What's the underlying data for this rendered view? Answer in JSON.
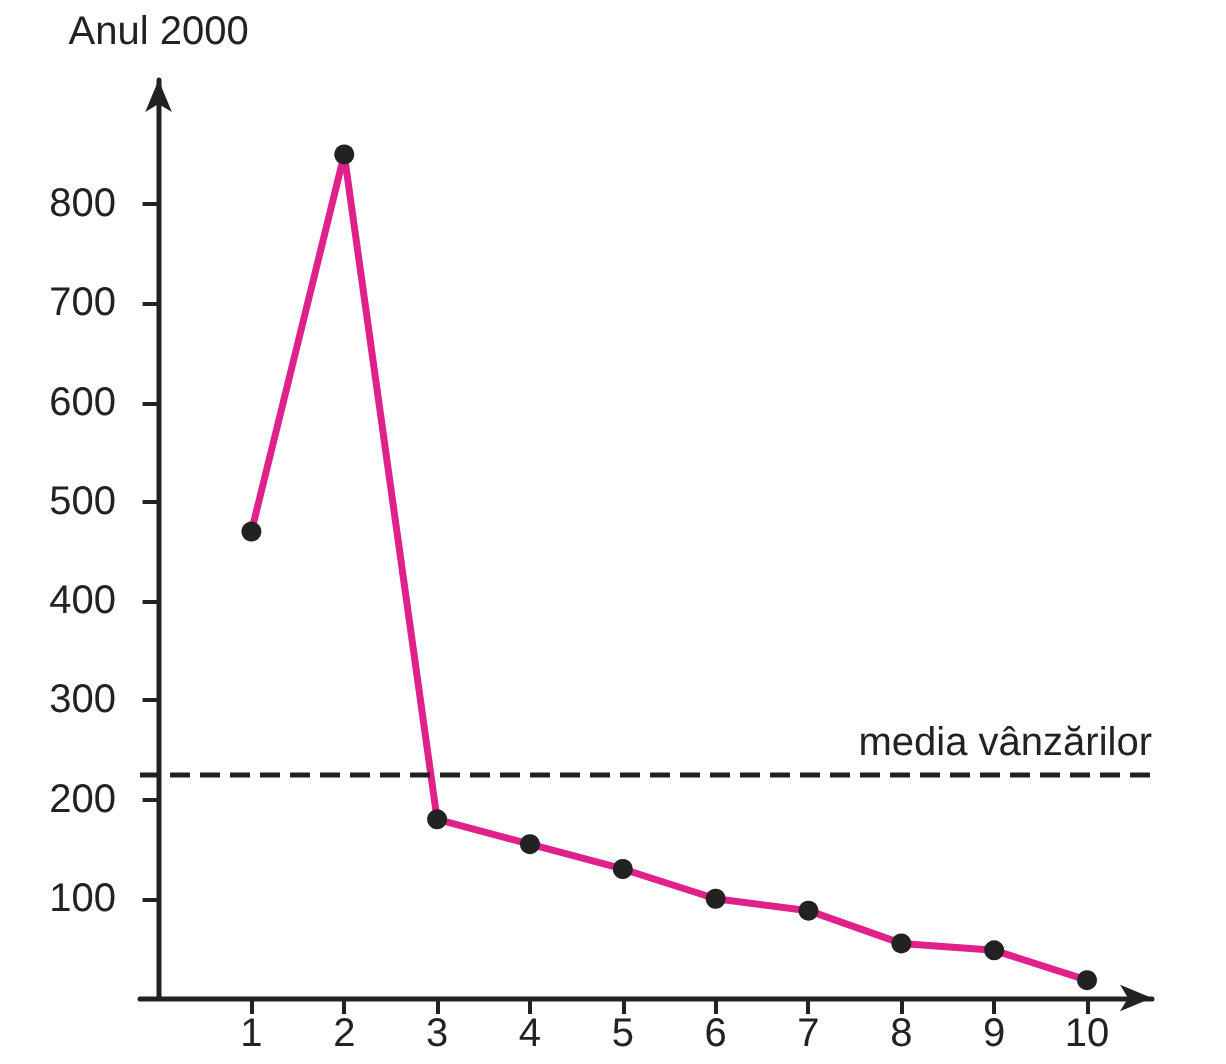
{
  "chart_data": {
    "type": "line",
    "ylabel": "Anul 2000",
    "x": [
      1,
      2,
      3,
      4,
      5,
      6,
      7,
      8,
      9,
      10
    ],
    "series": [
      {
        "color": "#e0218a",
        "values": [
          470,
          850,
          180,
          155,
          130,
          100,
          88,
          55,
          48,
          18
        ]
      }
    ],
    "xlim": [
      -0.2,
      10.7
    ],
    "ylim": [
      0,
      925
    ],
    "xticks": [
      1,
      2,
      3,
      4,
      5,
      6,
      7,
      8,
      9,
      10
    ],
    "yticks": [
      100,
      200,
      300,
      400,
      500,
      600,
      700,
      800
    ],
    "ref_lines": [
      {
        "axis": "y",
        "value": 225,
        "label": "media vânzărilor",
        "color": "#222222",
        "line_style": "dashed"
      }
    ],
    "marker": "circle",
    "line_style": "solid",
    "grid": false
  }
}
